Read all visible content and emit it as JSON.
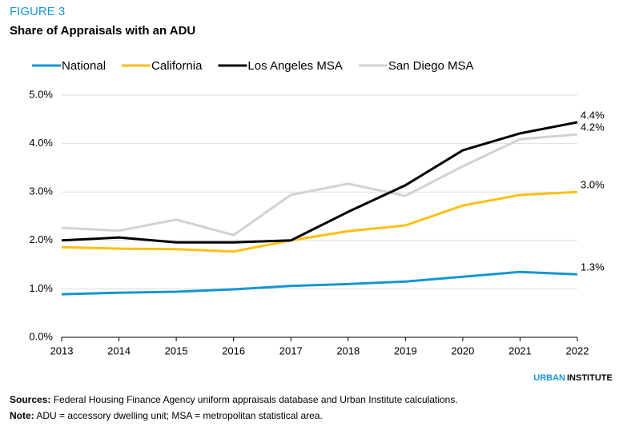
{
  "chart_data": {
    "type": "line",
    "figure_label": "FIGURE 3",
    "title": "Share of Appraisals with an ADU",
    "categories": [
      "2013",
      "2014",
      "2015",
      "2016",
      "2017",
      "2018",
      "2019",
      "2020",
      "2021",
      "2022"
    ],
    "series": [
      {
        "name": "National",
        "color": "#1696d2",
        "values": [
          0.89,
          0.92,
          0.94,
          0.99,
          1.06,
          1.1,
          1.15,
          1.25,
          1.35,
          1.3
        ],
        "value_labels": [
          null,
          null,
          null,
          null,
          null,
          null,
          null,
          null,
          null,
          "1.3%"
        ]
      },
      {
        "name": "California",
        "color": "#fdbf11",
        "values": [
          1.86,
          1.83,
          1.82,
          1.77,
          2.0,
          2.19,
          2.31,
          2.72,
          2.94,
          3.0
        ],
        "value_labels": [
          null,
          null,
          null,
          null,
          null,
          null,
          null,
          null,
          null,
          "3.0%"
        ]
      },
      {
        "name": "Los Angeles MSA",
        "color": "#000000",
        "values": [
          2.0,
          2.06,
          1.96,
          1.96,
          2.0,
          2.59,
          3.14,
          3.86,
          4.21,
          4.44
        ],
        "value_labels": [
          null,
          null,
          null,
          null,
          null,
          null,
          null,
          null,
          null,
          "4.4%"
        ]
      },
      {
        "name": "San Diego MSA",
        "color": "#d2d2d2",
        "values": [
          2.26,
          2.2,
          2.43,
          2.11,
          2.94,
          3.17,
          2.92,
          3.53,
          4.09,
          4.19
        ],
        "value_labels": [
          null,
          null,
          null,
          null,
          null,
          null,
          null,
          null,
          null,
          "4.2%"
        ]
      }
    ],
    "ylim": [
      0,
      5
    ],
    "yticks": [
      {
        "value": 0,
        "label": "0.0%"
      },
      {
        "value": 1,
        "label": "1.0%"
      },
      {
        "value": 2,
        "label": "2.0%"
      },
      {
        "value": 3,
        "label": "3.0%"
      },
      {
        "value": 4,
        "label": "4.0%"
      },
      {
        "value": 5,
        "label": "5.0%"
      }
    ],
    "grid": true,
    "legend": "top",
    "branding": {
      "urban": "URBAN",
      "institute": "INSTITUTE"
    },
    "footer": {
      "sources_label": "Sources:",
      "sources_text": "Federal Housing Finance Agency uniform appraisals database and Urban Institute calculations.",
      "note_label": "Note:",
      "note_text": "ADU = accessory dwelling unit; MSA = metropolitan statistical area."
    }
  }
}
